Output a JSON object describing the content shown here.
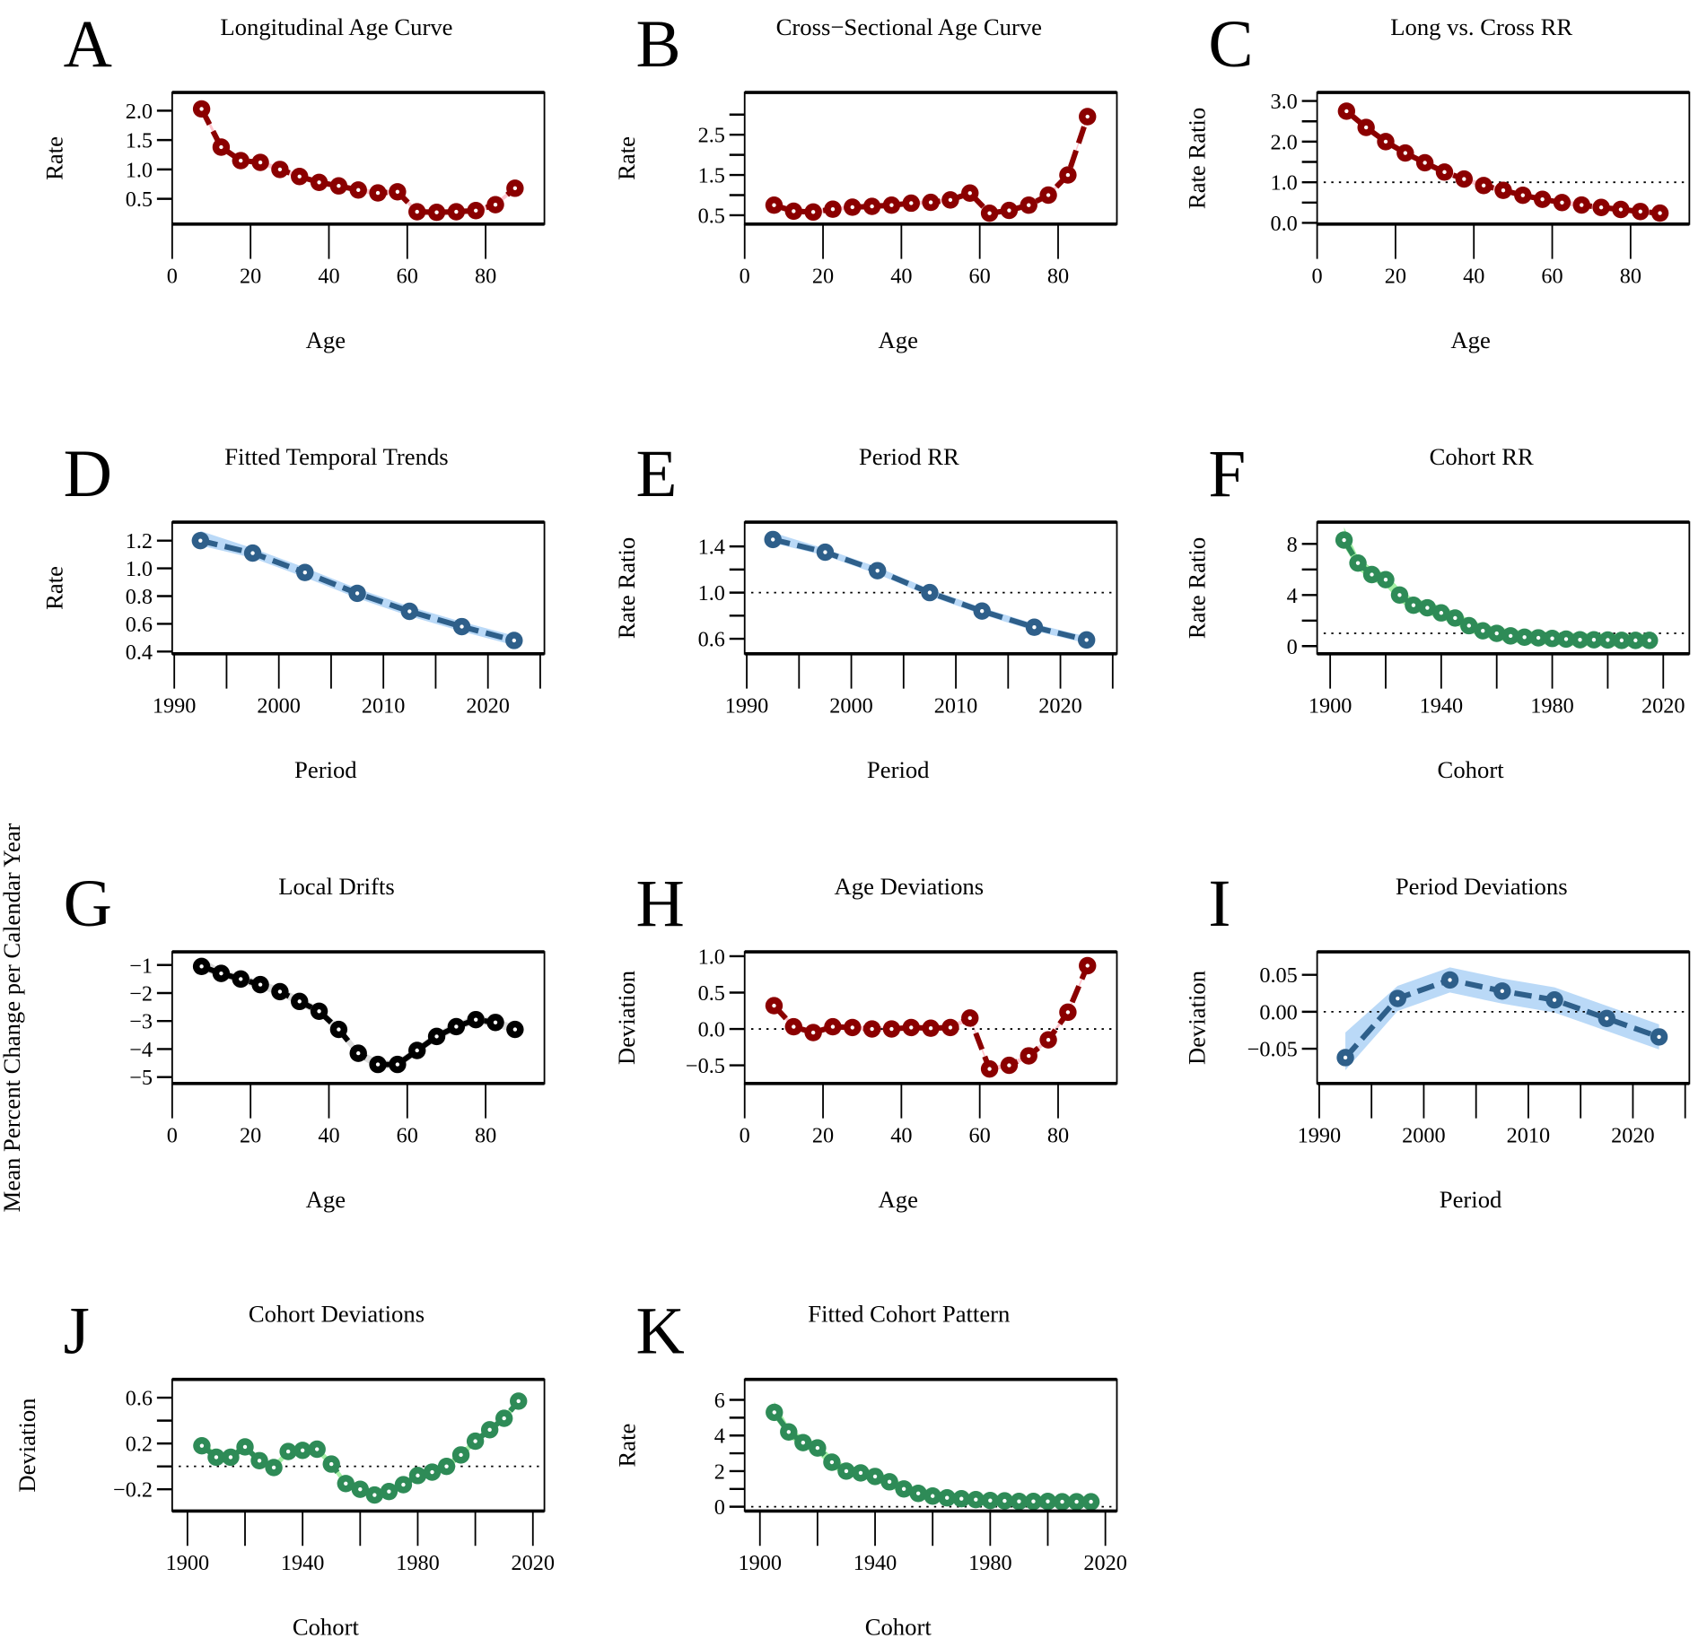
{
  "chart_data": [
    {
      "letter": "A",
      "title": "Longitudinal Age Curve",
      "type": "line",
      "xlabel": "Age",
      "ylabel": "Rate",
      "color": "#8b0000",
      "ci_color": "#ffb6c1",
      "ci": 0.04,
      "x": [
        7.5,
        12.5,
        17.5,
        22.5,
        27.5,
        32.5,
        37.5,
        42.5,
        47.5,
        52.5,
        57.5,
        62.5,
        67.5,
        72.5,
        77.5,
        82.5,
        87.5
      ],
      "y": [
        2.03,
        1.38,
        1.15,
        1.12,
        1.0,
        0.88,
        0.78,
        0.72,
        0.65,
        0.6,
        0.62,
        0.28,
        0.27,
        0.28,
        0.3,
        0.4,
        0.68
      ],
      "xlim": [
        0,
        95
      ],
      "ylim": [
        0.07,
        2.31
      ],
      "xticks": [
        0,
        20,
        40,
        60,
        80
      ],
      "xtick_labels": [
        "0",
        "20",
        "40",
        "60",
        "80"
      ],
      "yticks": [
        0.5,
        1.0,
        1.5,
        2.0
      ],
      "ytick_labels": [
        "0.5",
        "1.0",
        "1.5",
        "2.0"
      ],
      "ref": null
    },
    {
      "letter": "B",
      "title": "Cross−Sectional Age Curve",
      "type": "line",
      "xlabel": "Age",
      "ylabel": "Rate",
      "color": "#8b0000",
      "ci_color": "#ffb6c1",
      "ci": 0.05,
      "x": [
        7.5,
        12.5,
        17.5,
        22.5,
        27.5,
        32.5,
        37.5,
        42.5,
        47.5,
        52.5,
        57.5,
        62.5,
        67.5,
        72.5,
        77.5,
        82.5,
        87.5
      ],
      "y": [
        0.75,
        0.6,
        0.58,
        0.65,
        0.7,
        0.72,
        0.75,
        0.8,
        0.82,
        0.88,
        1.05,
        0.55,
        0.62,
        0.75,
        1.0,
        1.5,
        2.95
      ],
      "xlim": [
        0,
        95
      ],
      "ylim": [
        0.28,
        3.55
      ],
      "xticks": [
        0,
        20,
        40,
        60,
        80
      ],
      "xtick_labels": [
        "0",
        "20",
        "40",
        "60",
        "80"
      ],
      "yticks": [
        0.5,
        1.0,
        1.5,
        2.0,
        2.5,
        3.0
      ],
      "ytick_labels": [
        "0.5",
        "",
        "1.5",
        "",
        "2.5",
        ""
      ],
      "ref": null
    },
    {
      "letter": "C",
      "title": "Long vs. Cross RR",
      "type": "line",
      "xlabel": "Age",
      "ylabel": "Rate Ratio",
      "color": "#8b0000",
      "ci_color": "#ffb6c1",
      "ci": 0.06,
      "x": [
        7.5,
        12.5,
        17.5,
        22.5,
        27.5,
        32.5,
        37.5,
        42.5,
        47.5,
        52.5,
        57.5,
        62.5,
        67.5,
        72.5,
        77.5,
        82.5,
        87.5
      ],
      "y": [
        2.75,
        2.35,
        2.0,
        1.72,
        1.48,
        1.25,
        1.08,
        0.92,
        0.8,
        0.68,
        0.58,
        0.5,
        0.44,
        0.38,
        0.33,
        0.28,
        0.24
      ],
      "xlim": [
        0,
        95
      ],
      "ylim": [
        -0.03,
        3.21
      ],
      "xticks": [
        0,
        20,
        40,
        60,
        80
      ],
      "xtick_labels": [
        "0",
        "20",
        "40",
        "60",
        "80"
      ],
      "yticks": [
        0,
        0.5,
        1,
        1.5,
        2,
        2.5,
        3
      ],
      "ytick_labels": [
        "0.0",
        "",
        "1.0",
        "",
        "2.0",
        "",
        "3.0"
      ],
      "ref": 1
    },
    {
      "letter": "D",
      "title": "Fitted Temporal Trends",
      "type": "line",
      "xlabel": "Period",
      "ylabel": "Rate",
      "color": "#2e5f8a",
      "ci_color": "#a9d0f5",
      "ci": 0.035,
      "x": [
        1992.5,
        1997.5,
        2002.5,
        2007.5,
        2012.5,
        2017.5,
        2022.5
      ],
      "y": [
        1.2,
        1.11,
        0.97,
        0.82,
        0.69,
        0.58,
        0.48
      ],
      "xlim": [
        1989.8,
        2025.4
      ],
      "ylim": [
        0.384,
        1.333
      ],
      "xticks": [
        1990,
        1995,
        2000,
        2005,
        2010,
        2015,
        2020,
        2025
      ],
      "xtick_labels": [
        "1990",
        "",
        "2000",
        "",
        "2010",
        "",
        "2020",
        ""
      ],
      "yticks": [
        0.4,
        0.6,
        0.8,
        1.0,
        1.2
      ],
      "ytick_labels": [
        "0.4",
        "0.6",
        "0.8",
        "1.0",
        "1.2"
      ],
      "ref": null
    },
    {
      "letter": "E",
      "title": "Period RR",
      "type": "line",
      "xlabel": "Period",
      "ylabel": "Rate Ratio",
      "color": "#2e5f8a",
      "ci_color": "#a9d0f5",
      "ci": 0.03,
      "x": [
        1992.5,
        1997.5,
        2002.5,
        2007.5,
        2012.5,
        2017.5,
        2022.5
      ],
      "y": [
        1.46,
        1.35,
        1.19,
        1.0,
        0.84,
        0.7,
        0.59
      ],
      "xlim": [
        1989.8,
        2025.4
      ],
      "ylim": [
        0.47,
        1.61
      ],
      "xticks": [
        1990,
        1995,
        2000,
        2005,
        2010,
        2015,
        2020,
        2025
      ],
      "xtick_labels": [
        "1990",
        "",
        "2000",
        "",
        "2010",
        "",
        "2020",
        ""
      ],
      "yticks": [
        0.6,
        0.8,
        1.0,
        1.2,
        1.4
      ],
      "ytick_labels": [
        "0.6",
        "",
        "1.0",
        "",
        "1.4"
      ],
      "ref": 1
    },
    {
      "letter": "F",
      "title": "Cohort RR",
      "type": "line",
      "xlabel": "Cohort",
      "ylabel": "Rate Ratio",
      "color": "#2e8b57",
      "ci_color": "#90ee90",
      "ci": 0.5,
      "x": [
        1905,
        1910,
        1915,
        1920,
        1925,
        1930,
        1935,
        1940,
        1945,
        1950,
        1955,
        1960,
        1965,
        1970,
        1975,
        1980,
        1985,
        1990,
        1995,
        2000,
        2005,
        2010,
        2015
      ],
      "y": [
        8.3,
        6.5,
        5.6,
        5.2,
        4.0,
        3.2,
        3.0,
        2.6,
        2.2,
        1.6,
        1.2,
        1.0,
        0.8,
        0.7,
        0.65,
        0.6,
        0.55,
        0.5,
        0.5,
        0.48,
        0.45,
        0.45,
        0.45
      ],
      "xlim": [
        1895.3,
        2029.4
      ],
      "ylim": [
        -0.6,
        9.7
      ],
      "xticks": [
        1900,
        1920,
        1940,
        1960,
        1980,
        2000,
        2020
      ],
      "xtick_labels": [
        "1900",
        "",
        "1940",
        "",
        "1980",
        "",
        "2020"
      ],
      "yticks": [
        0,
        2,
        4,
        6,
        8
      ],
      "ytick_labels": [
        "0",
        "",
        "4",
        "",
        "8"
      ],
      "ref": 1
    },
    {
      "letter": "G",
      "title": "Local Drifts",
      "type": "line",
      "xlabel": "Age",
      "ylabel": "Mean Percent Change per Calendar Year",
      "color": "#000000",
      "ci_color": "#d3d3d3",
      "ci": 0.15,
      "x": [
        7.5,
        12.5,
        17.5,
        22.5,
        27.5,
        32.5,
        37.5,
        42.5,
        47.5,
        52.5,
        57.5,
        62.5,
        67.5,
        72.5,
        77.5,
        82.5,
        87.5
      ],
      "y": [
        -1.05,
        -1.3,
        -1.5,
        -1.7,
        -1.95,
        -2.3,
        -2.65,
        -3.3,
        -4.15,
        -4.55,
        -4.55,
        -4.05,
        -3.55,
        -3.2,
        -2.95,
        -3.05,
        -3.3
      ],
      "xlim": [
        0,
        95
      ],
      "ylim": [
        -5.23,
        -0.53
      ],
      "xticks": [
        0,
        20,
        40,
        60,
        80
      ],
      "xtick_labels": [
        "0",
        "20",
        "40",
        "60",
        "80"
      ],
      "yticks": [
        -5,
        -4,
        -3,
        -2,
        -1
      ],
      "ytick_labels": [
        "−5",
        "−4",
        "−3",
        "−2",
        "−1"
      ],
      "ref": null
    },
    {
      "letter": "H",
      "title": "Age Deviations",
      "type": "line",
      "xlabel": "Age",
      "ylabel": "Deviation",
      "color": "#8b0000",
      "ci_color": "#ffb6c1",
      "ci": 0.03,
      "x": [
        7.5,
        12.5,
        17.5,
        22.5,
        27.5,
        32.5,
        37.5,
        42.5,
        47.5,
        52.5,
        57.5,
        62.5,
        67.5,
        72.5,
        77.5,
        82.5,
        87.5
      ],
      "y": [
        0.32,
        0.03,
        -0.05,
        0.03,
        0.02,
        0.0,
        0.0,
        0.02,
        0.01,
        0.02,
        0.15,
        -0.55,
        -0.5,
        -0.37,
        -0.15,
        0.23,
        0.87
      ],
      "xlim": [
        0,
        95
      ],
      "ylim": [
        -0.75,
        1.06
      ],
      "xticks": [
        0,
        20,
        40,
        60,
        80
      ],
      "xtick_labels": [
        "0",
        "20",
        "40",
        "60",
        "80"
      ],
      "yticks": [
        -0.5,
        0,
        0.5,
        1.0
      ],
      "ytick_labels": [
        "−0.5",
        "0.0",
        "0.5",
        "1.0"
      ],
      "ref": 0
    },
    {
      "letter": "I",
      "title": "Period Deviations",
      "type": "line",
      "xlabel": "Period",
      "ylabel": "Deviation",
      "color": "#2e5f8a",
      "ci_color": "#a9d0f5",
      "ci": 0.017,
      "x": [
        1992.5,
        1997.5,
        2002.5,
        2007.5,
        2012.5,
        2017.5,
        2022.5
      ],
      "y": [
        -0.062,
        0.018,
        0.043,
        0.028,
        0.016,
        -0.009,
        -0.034
      ],
      "xlim": [
        1989.8,
        2025.4
      ],
      "ylim": [
        -0.097,
        0.081
      ],
      "xticks": [
        1990,
        1995,
        2000,
        2005,
        2010,
        2015,
        2020,
        2025
      ],
      "xtick_labels": [
        "1990",
        "",
        "2000",
        "",
        "2010",
        "",
        "2020",
        ""
      ],
      "yticks": [
        -0.05,
        0,
        0.05
      ],
      "ytick_labels": [
        "−0.05",
        "0.00",
        "0.05"
      ],
      "ref": 0
    },
    {
      "letter": "J",
      "title": "Cohort Deviations",
      "type": "line",
      "xlabel": "Cohort",
      "ylabel": "Deviation",
      "color": "#2e8b57",
      "ci_color": "#90ee90",
      "ci": 0.03,
      "x": [
        1905,
        1910,
        1915,
        1920,
        1925,
        1930,
        1935,
        1940,
        1945,
        1950,
        1955,
        1960,
        1965,
        1970,
        1975,
        1980,
        1985,
        1990,
        1995,
        2000,
        2005,
        2010,
        2015
      ],
      "y": [
        0.18,
        0.08,
        0.08,
        0.17,
        0.05,
        -0.01,
        0.13,
        0.14,
        0.15,
        0.02,
        -0.15,
        -0.2,
        -0.25,
        -0.22,
        -0.16,
        -0.08,
        -0.05,
        0.0,
        0.1,
        0.22,
        0.32,
        0.42,
        0.57
      ],
      "xlim": [
        1894.7,
        2024
      ],
      "ylim": [
        -0.39,
        0.76
      ],
      "xticks": [
        1900,
        1920,
        1940,
        1960,
        1980,
        2000,
        2020
      ],
      "xtick_labels": [
        "1900",
        "",
        "1940",
        "",
        "1980",
        "",
        "2020"
      ],
      "yticks": [
        -0.2,
        0,
        0.2,
        0.4,
        0.6
      ],
      "ytick_labels": [
        "−0.2",
        "",
        "0.2",
        "",
        "0.6"
      ],
      "ref": 0
    },
    {
      "letter": "K",
      "title": "Fitted Cohort Pattern",
      "type": "line",
      "xlabel": "Cohort",
      "ylabel": "Rate",
      "color": "#2e8b57",
      "ci_color": "#90ee90",
      "ci": 0.3,
      "x": [
        1905,
        1910,
        1915,
        1920,
        1925,
        1930,
        1935,
        1940,
        1945,
        1950,
        1955,
        1960,
        1965,
        1970,
        1975,
        1980,
        1985,
        1990,
        1995,
        2000,
        2005,
        2010,
        2015
      ],
      "y": [
        5.3,
        4.2,
        3.6,
        3.3,
        2.5,
        2.0,
        1.9,
        1.7,
        1.4,
        1.0,
        0.75,
        0.6,
        0.5,
        0.45,
        0.4,
        0.35,
        0.33,
        0.3,
        0.3,
        0.3,
        0.28,
        0.28,
        0.28
      ],
      "xlim": [
        1894.7,
        2024
      ],
      "ylim": [
        -0.24,
        7.15
      ],
      "xticks": [
        1900,
        1920,
        1940,
        1960,
        1980,
        2000,
        2020
      ],
      "xtick_labels": [
        "1900",
        "",
        "1940",
        "",
        "1980",
        "",
        "2020"
      ],
      "yticks": [
        0,
        1,
        2,
        3,
        4,
        5,
        6
      ],
      "ytick_labels": [
        "0",
        "",
        "2",
        "",
        "4",
        "",
        "6"
      ],
      "ref": 0
    }
  ]
}
